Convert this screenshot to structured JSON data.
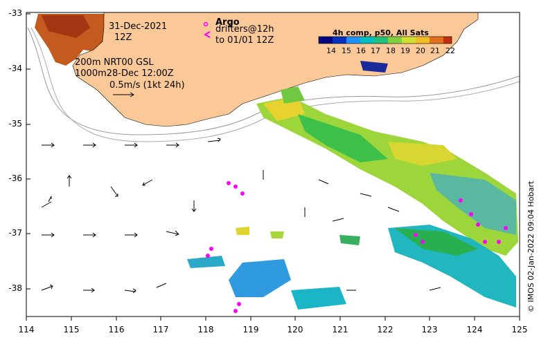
{
  "map": {
    "date_line1": "31-Dec-2021",
    "date_line2": "12Z",
    "depth_line1": "200m  NRT00 GSL",
    "depth_line2": "1000m28-Dec 12:00Z",
    "scale_label": "0.5m/s (1kt 24h)",
    "argo_label": "Argo",
    "drifters_line1": "drifters@12h",
    "drifters_line2": "to 01/01 12Z",
    "colorbar_title": "4h comp, p50, All Sats",
    "colorbar_ticks": [
      "14",
      "15",
      "16",
      "17",
      "18",
      "19",
      "20",
      "21",
      "22"
    ],
    "colorbar_colors": [
      "#000080",
      "#0030c0",
      "#1e90ff",
      "#00c0c0",
      "#20c080",
      "#80d040",
      "#d0e030",
      "#f0c020",
      "#e07020",
      "#c03010",
      "#800000"
    ],
    "credit": "© IMOS 02-Jan-2022 09:04 Hobart",
    "land_color": "#fbc898",
    "lat_labels": [
      "-33",
      "-34",
      "-35",
      "-36",
      "-37",
      "-38"
    ],
    "lon_labels": [
      "114",
      "115",
      "116",
      "117",
      "118",
      "119",
      "120",
      "121",
      "122",
      "123",
      "124",
      "125"
    ]
  }
}
